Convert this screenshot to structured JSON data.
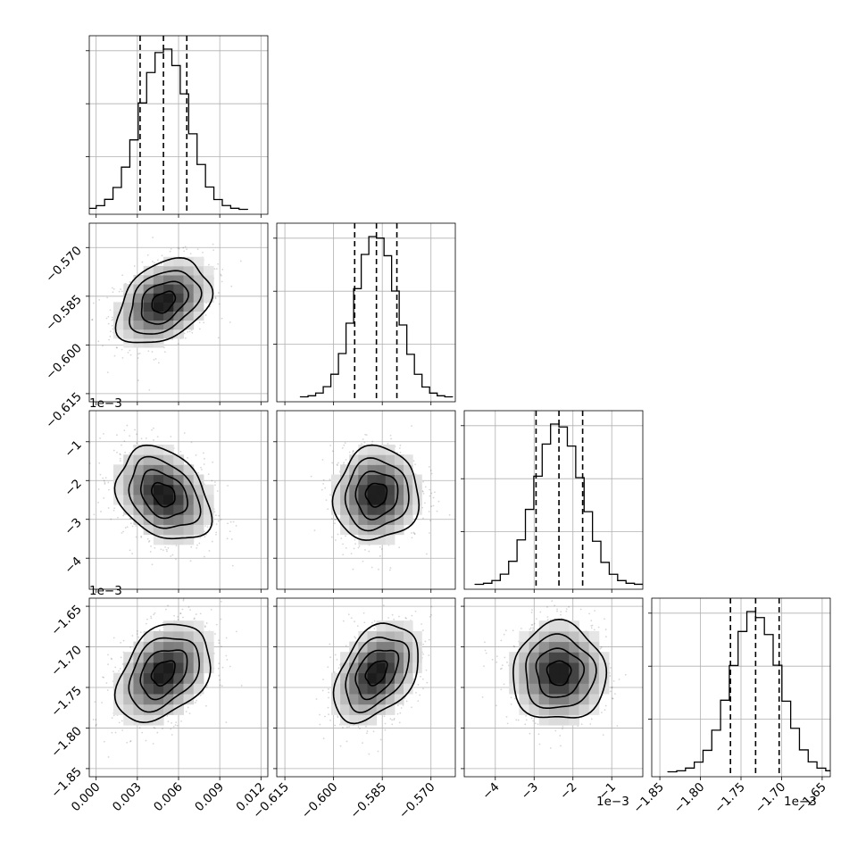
{
  "chart_data": {
    "type": "corner",
    "grid": true,
    "parameters": [
      {
        "index": 0,
        "range": [
          -0.0005,
          0.0125
        ],
        "ticks": [
          0.0,
          0.003,
          0.006,
          0.009,
          0.012
        ],
        "tick_labels": [
          "0.000",
          "0.003",
          "0.006",
          "0.009",
          "0.012"
        ],
        "offset_text": "",
        "quantiles": [
          0.0032,
          0.0049,
          0.0066
        ],
        "mean": 0.0049,
        "sd": 0.0017
      },
      {
        "index": 1,
        "range": [
          -0.6175,
          -0.5625
        ],
        "ticks": [
          -0.615,
          -0.6,
          -0.585,
          -0.57
        ],
        "tick_labels": [
          "−0.615",
          "−0.600",
          "−0.585",
          "−0.570"
        ],
        "offset_text": "",
        "quantiles": [
          -0.5935,
          -0.5868,
          -0.5805
        ],
        "mean": -0.5868,
        "sd": 0.0065
      },
      {
        "index": 2,
        "range": [
          -0.0048,
          -0.0002
        ],
        "ticks": [
          -0.004,
          -0.003,
          -0.002,
          -0.001
        ],
        "tick_labels": [
          "−4",
          "−3",
          "−2",
          "−1"
        ],
        "offset_text": "1e−3",
        "quantiles": [
          -0.00295,
          -0.00236,
          -0.00175
        ],
        "mean": -0.00236,
        "sd": 0.0006
      },
      {
        "index": 3,
        "range": [
          -0.00186,
          -0.00164
        ],
        "ticks": [
          -0.00185,
          -0.0018,
          -0.00175,
          -0.0017,
          -0.00165
        ],
        "tick_labels": [
          "−1.85",
          "−1.80",
          "−1.75",
          "−1.70",
          "−1.65"
        ],
        "offset_text": "1e−3",
        "quantiles": [
          -0.001763,
          -0.001732,
          -0.001703
        ],
        "mean": -0.001732,
        "sd": 3e-05
      }
    ],
    "correlations": {
      "1-0": 0.35,
      "2-0": -0.3,
      "2-1": 0.05,
      "3-0": 0.35,
      "3-1": 0.4,
      "3-2": 0.0
    }
  }
}
